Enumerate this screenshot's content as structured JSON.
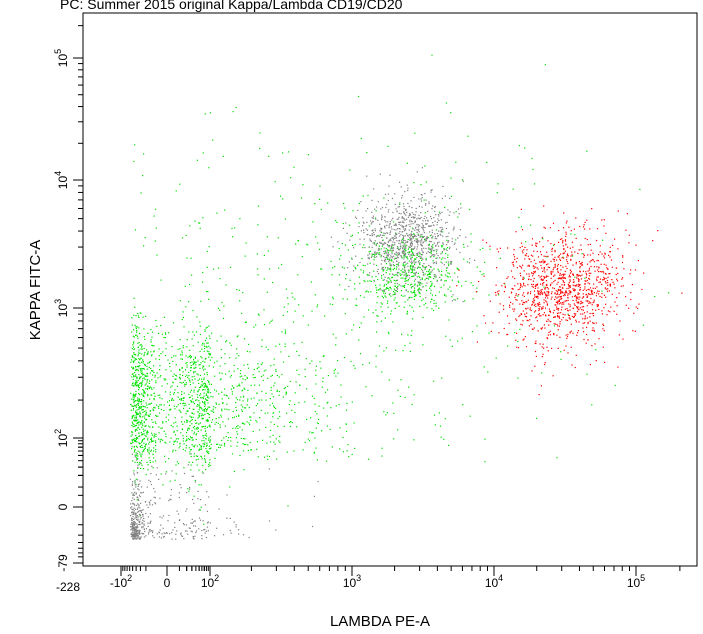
{
  "chart_data": {
    "type": "scatter",
    "title": "PC: Summer 2015 original Kappa/Lambda CD19/CD20",
    "xlabel": "LAMBDA PE-A",
    "ylabel": "KAPPA FITC-A",
    "x_scale": "biexponential",
    "y_scale": "biexponential",
    "xlim": [
      -228,
      262143
    ],
    "ylim": [
      -79,
      262143
    ],
    "x_ticks": [
      {
        "value": -228,
        "base": "-228",
        "exp": ""
      },
      {
        "value": -100,
        "base": "-10",
        "exp": "2"
      },
      {
        "value": 0,
        "base": "0",
        "exp": ""
      },
      {
        "value": 100,
        "base": "10",
        "exp": "2"
      },
      {
        "value": 1000,
        "base": "10",
        "exp": "3"
      },
      {
        "value": 10000,
        "base": "10",
        "exp": "4"
      },
      {
        "value": 100000,
        "base": "10",
        "exp": "5"
      }
    ],
    "y_ticks": [
      {
        "value": -79,
        "base": "-79",
        "exp": ""
      },
      {
        "value": 0,
        "base": "0",
        "exp": ""
      },
      {
        "value": 100,
        "base": "10",
        "exp": "2"
      },
      {
        "value": 1000,
        "base": "10",
        "exp": "3"
      },
      {
        "value": 10000,
        "base": "10",
        "exp": "4"
      },
      {
        "value": 100000,
        "base": "10",
        "exp": "5"
      }
    ],
    "series": [
      {
        "color": "#00e000",
        "populations": [
          {
            "x_center": 80,
            "y_center": 220,
            "x_spread": 1.0,
            "y_spread": 0.55,
            "count": 1600
          },
          {
            "x_center": 2500,
            "y_center": 2000,
            "x_spread": 0.35,
            "y_spread": 0.3,
            "count": 500
          },
          {
            "x_center": 800,
            "y_center": 1500,
            "x_spread": 1.6,
            "y_spread": 1.2,
            "count": 450
          }
        ]
      },
      {
        "color": "#808080",
        "populations": [
          {
            "x_center": 2500,
            "y_center": 3500,
            "x_spread": 0.35,
            "y_spread": 0.35,
            "count": 850
          },
          {
            "x_center": 30,
            "y_center": 20,
            "x_spread": 0.9,
            "y_spread": 0.5,
            "count": 450
          }
        ]
      },
      {
        "color": "#ff0000",
        "populations": [
          {
            "x_center": 30000,
            "y_center": 1500,
            "x_spread": 0.45,
            "y_spread": 0.45,
            "count": 1100
          }
        ]
      }
    ],
    "grid": false,
    "legend": "none"
  }
}
